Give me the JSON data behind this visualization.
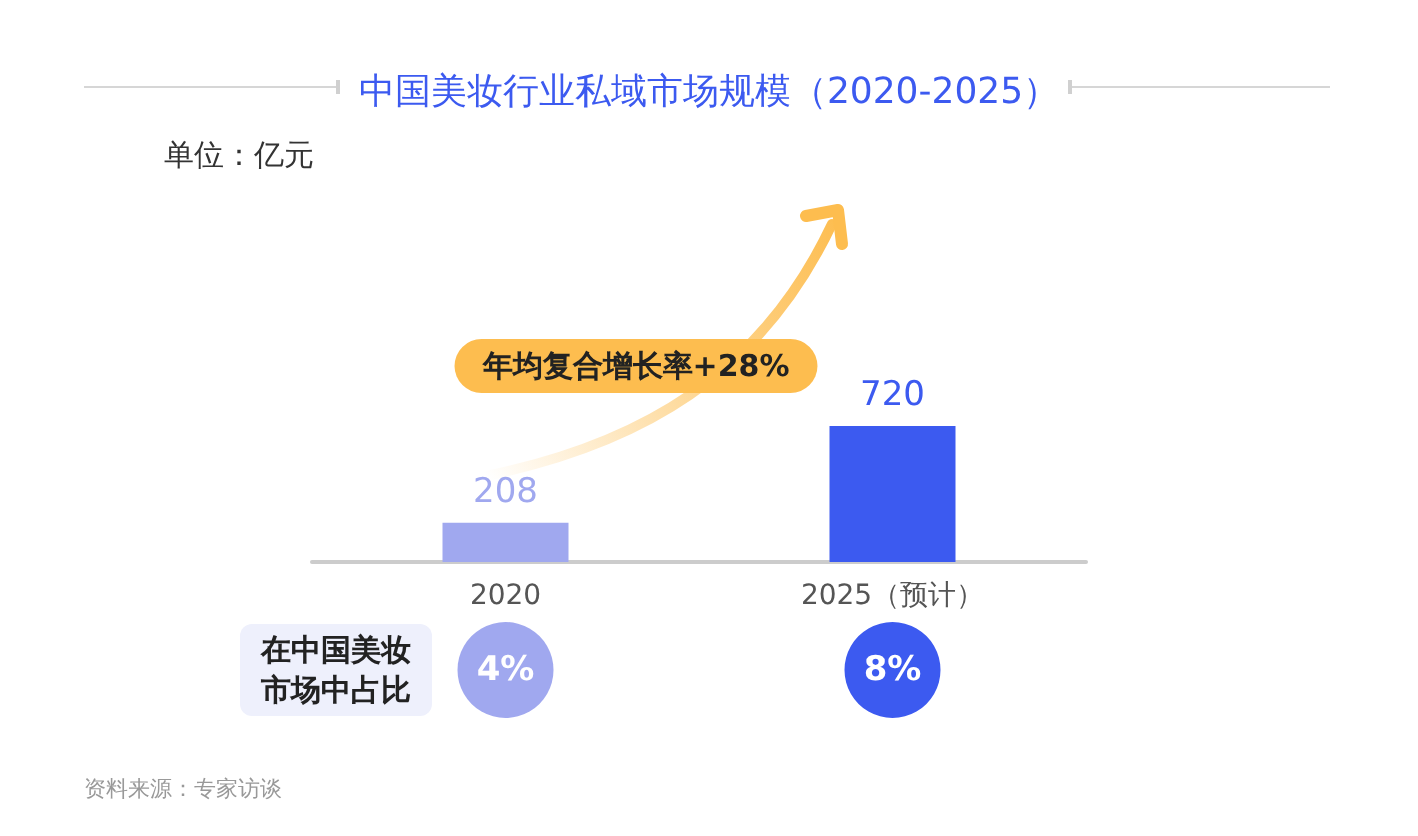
{
  "chart_data": [
    {
      "type": "bar",
      "title": "中国美妆行业私域市场规模（2020-2025）",
      "ylabel": "单位：亿元",
      "categories": [
        "2020",
        "2025（预计）"
      ],
      "values": [
        208,
        720
      ],
      "colors": [
        "#a0a8ef",
        "#3c5af0"
      ],
      "data_labels": true,
      "annotations": [
        "年均复合增长率+28%"
      ]
    },
    {
      "type": "other",
      "ylabel": "在中国美妆市场中占比",
      "categories": [
        null,
        null
      ],
      "values": [
        4,
        8
      ],
      "value_labels": [
        "4%",
        "8%"
      ],
      "colors": [
        "#a0a8ef",
        "#3c5af0"
      ],
      "annotations": [
        "资料来源：专家访谈"
      ]
    }
  ]
}
